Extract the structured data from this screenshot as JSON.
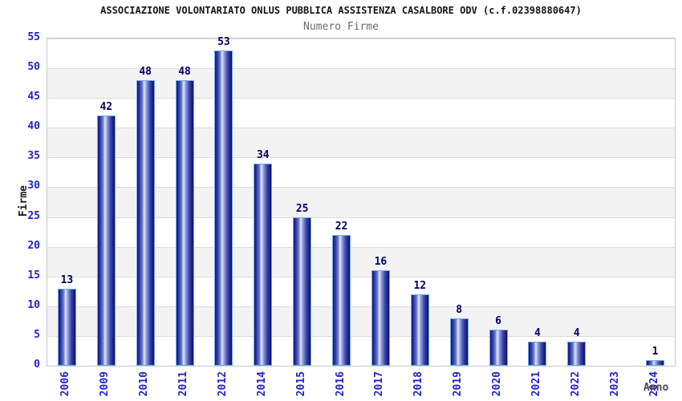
{
  "chart_data": {
    "type": "bar",
    "title": "ASSOCIAZIONE VOLONTARIATO ONLUS PUBBLICA ASSISTENZA CASALBORE ODV (c.f.02398880647)",
    "subtitle": "Numero Firme",
    "xlabel": "Anno",
    "ylabel": "Firme",
    "categories": [
      "2006",
      "2009",
      "2010",
      "2011",
      "2012",
      "2014",
      "2015",
      "2016",
      "2017",
      "2018",
      "2019",
      "2020",
      "2021",
      "2022",
      "2023",
      "2024"
    ],
    "values": [
      13,
      42,
      48,
      48,
      53,
      34,
      25,
      22,
      16,
      12,
      8,
      6,
      4,
      4,
      0,
      1
    ],
    "ylim": [
      0,
      55
    ],
    "ytick_step": 5,
    "grid": true,
    "legend_position": "none",
    "colors": {
      "bar_edge_dark": "#101583",
      "bar_highlight": "#dfe6fa",
      "bar_border": "#72aadf",
      "tick_label": "#2222cc",
      "value_label": "#000066",
      "title": "#151515",
      "subtitle": "#6b6b6b",
      "band_gray": "#f3f3f3",
      "gridline": "#dcdcdc",
      "plot_border": "#c9c9c9",
      "background": "#ffffff"
    }
  }
}
